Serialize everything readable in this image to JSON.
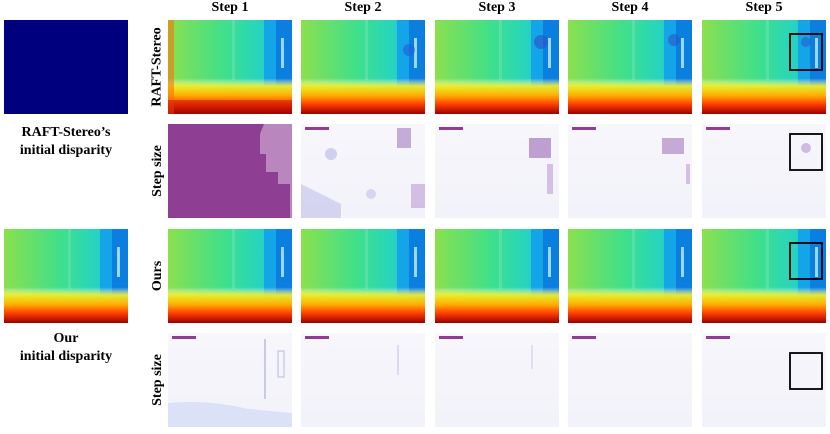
{
  "steps": [
    "Step 1",
    "Step 2",
    "Step 3",
    "Step 4",
    "Step 5"
  ],
  "rows": {
    "raft": "RAFT-Stereo",
    "step_size": "Step size",
    "ours": "Ours"
  },
  "captions": {
    "raft_initial": "RAFT-Stereo’s\ninitial disparity",
    "our_initial": "Our\ninitial disparity"
  },
  "colors": {
    "purple": "#8e3f94",
    "navy": "#00007e",
    "highlight_box": "#000000"
  }
}
